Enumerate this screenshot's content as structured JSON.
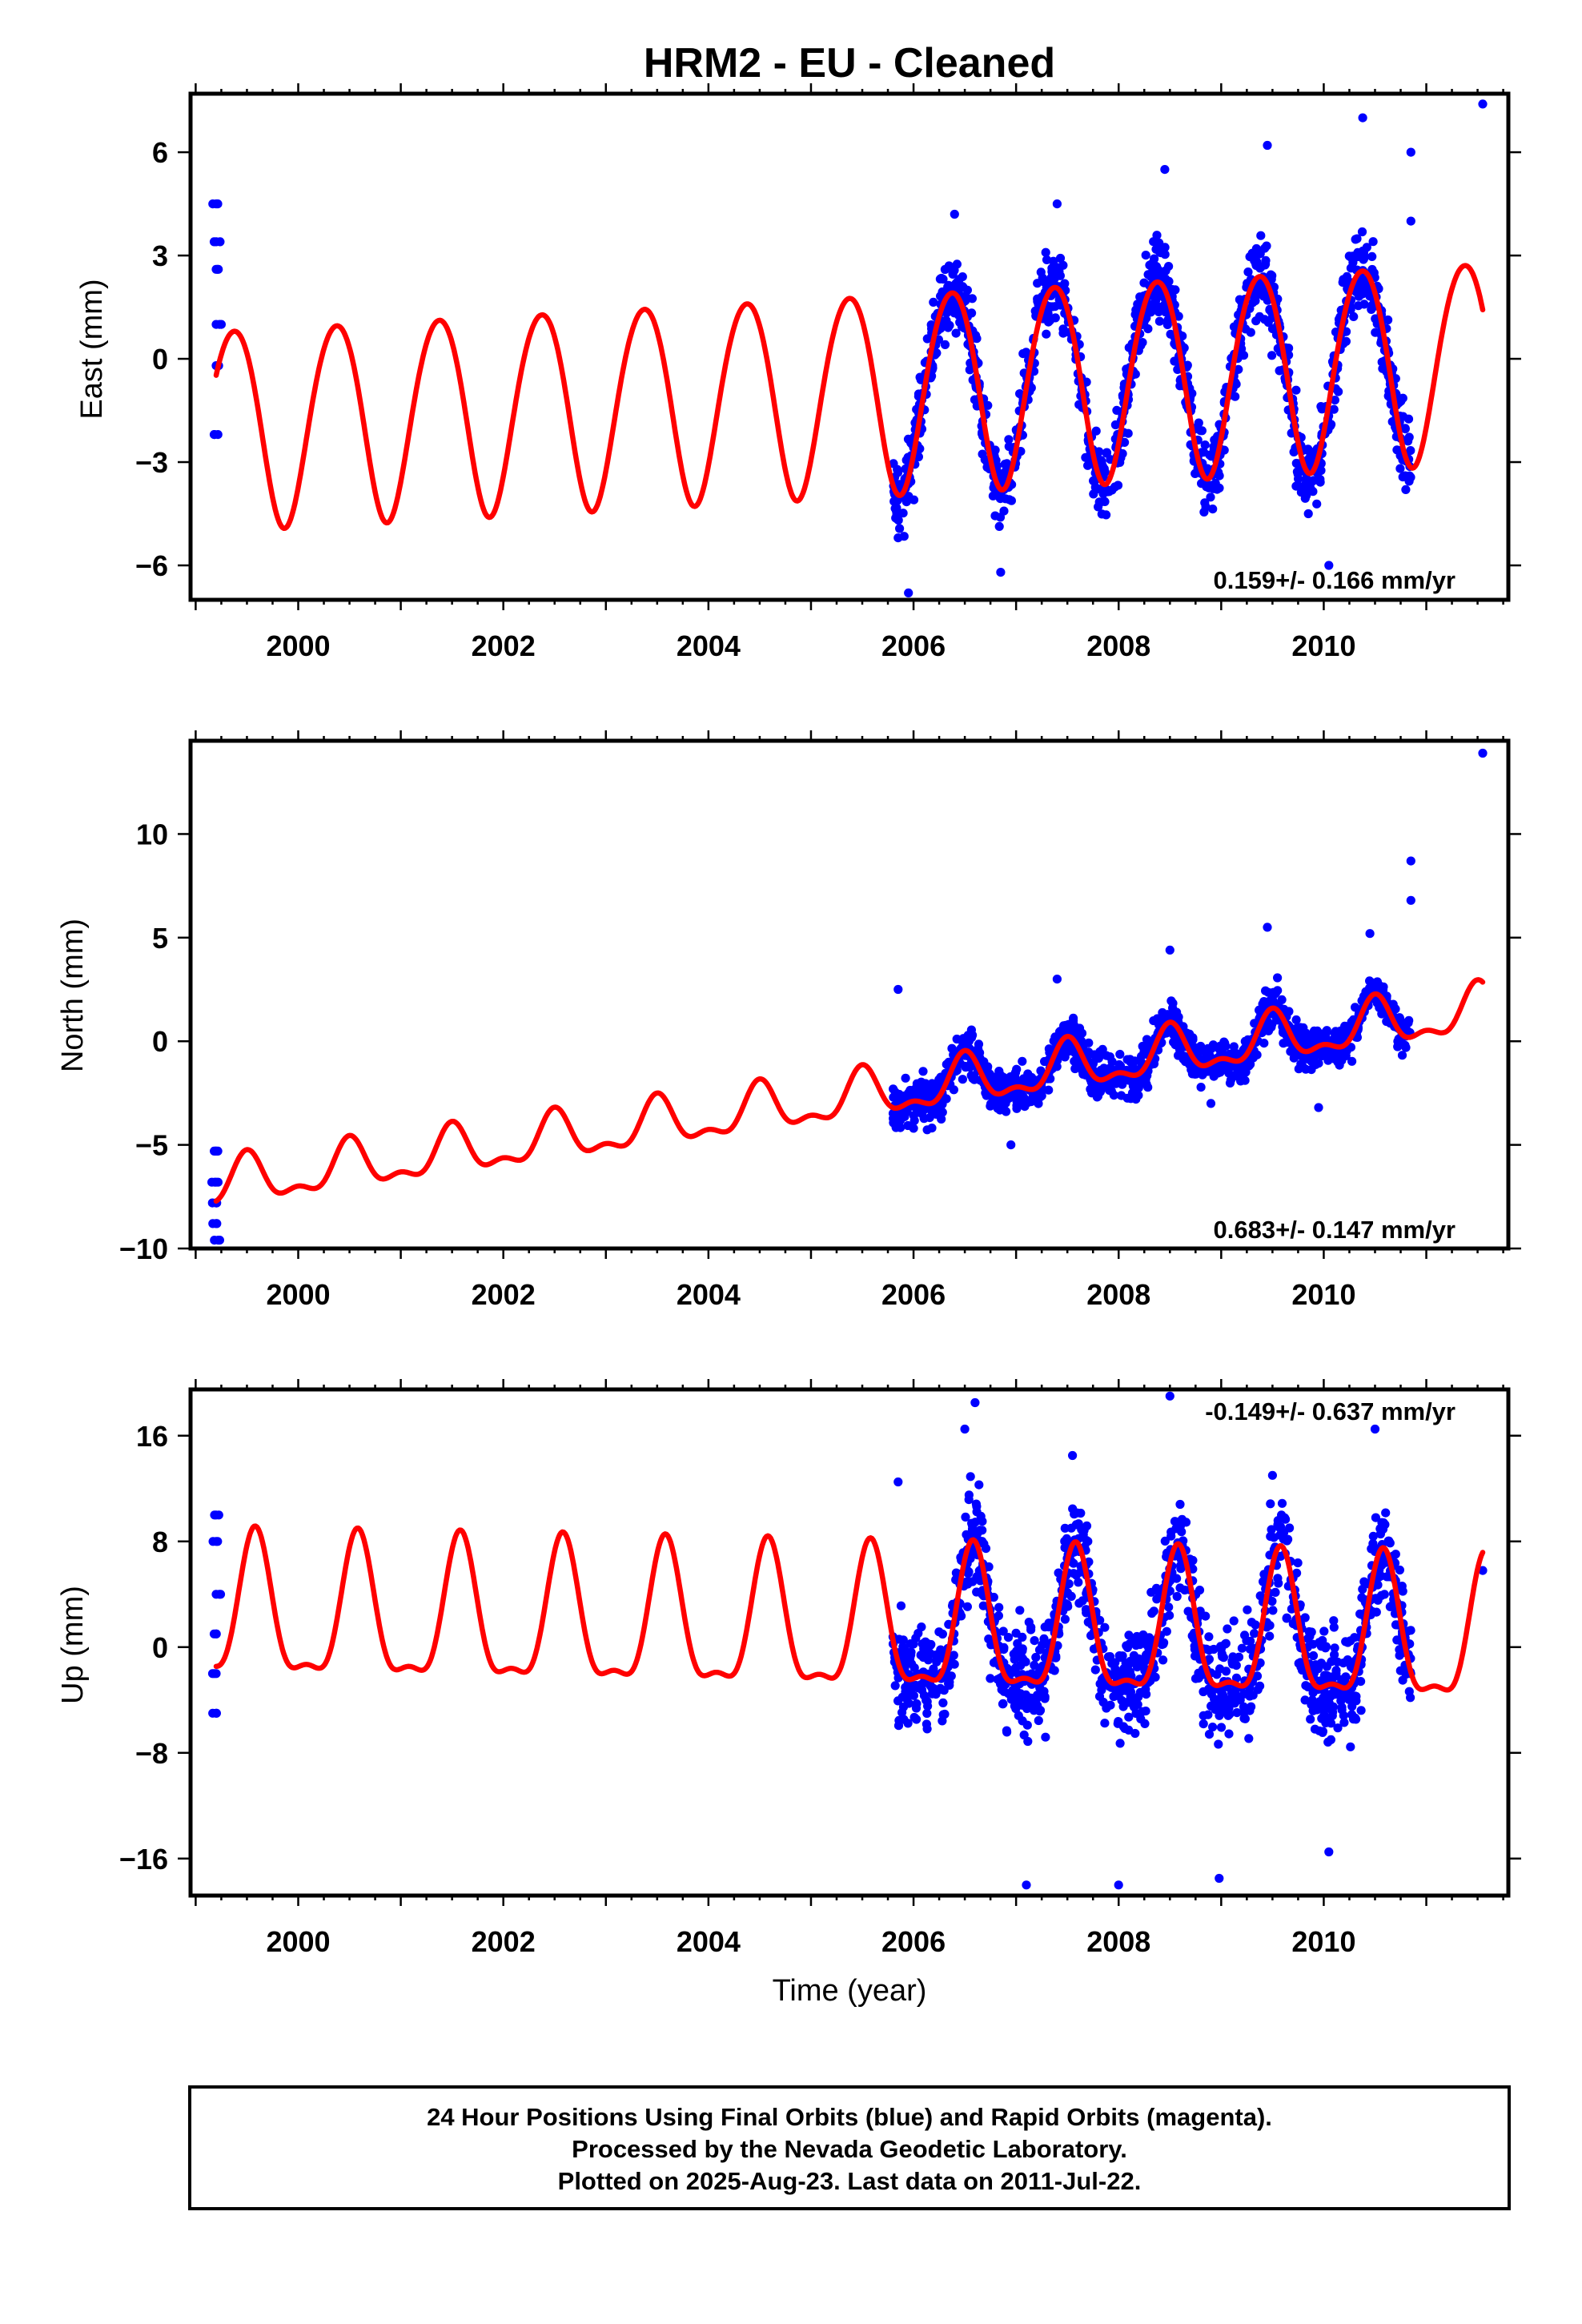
{
  "chart_data": [
    {
      "type": "scatter",
      "title": "HRM2  - EU - Cleaned",
      "ylabel": "East (mm)",
      "xlabel": "",
      "xlim": [
        1998.95,
        2011.8
      ],
      "ylim": [
        -7.0,
        7.7
      ],
      "x_ticks": [
        "2000",
        "2002",
        "2004",
        "2006",
        "2008",
        "2010"
      ],
      "y_ticks": [
        "6",
        "3",
        "0",
        "−3",
        "−6"
      ],
      "y_tick_values": [
        6,
        3,
        0,
        -3,
        -6
      ],
      "rate_label": "0.159+/- 0.166 mm/yr",
      "grid": false,
      "series": [
        {
          "kind": "points",
          "color": "#0000ff",
          "segments": [
            {
              "x_start": 1999.15,
              "x_end": 1999.25,
              "sample_points": [
                [
                  1999.2,
                  4.5
                ],
                [
                  1999.2,
                  3.4
                ],
                [
                  1999.2,
                  2.6
                ],
                [
                  1999.2,
                  1.0
                ],
                [
                  1999.2,
                  -0.2
                ],
                [
                  1999.18,
                  -2.2
                ]
              ]
            },
            {
              "x_start": 2005.8,
              "x_end": 2010.85,
              "sample_points": [
                [
                  2005.85,
                  -5.2
                ],
                [
                  2005.95,
                  -6.8
                ],
                [
                  2006.4,
                  4.2
                ],
                [
                  2006.85,
                  -6.2
                ],
                [
                  2007.4,
                  4.5
                ],
                [
                  2007.8,
                  -4.3
                ],
                [
                  2008.45,
                  5.5
                ],
                [
                  2008.85,
                  -4.3
                ],
                [
                  2009.45,
                  6.2
                ],
                [
                  2009.85,
                  -4.5
                ],
                [
                  2010.05,
                  -6.0
                ],
                [
                  2010.38,
                  7.0
                ],
                [
                  2010.8,
                  -3.8
                ],
                [
                  2010.85,
                  6.0
                ],
                [
                  2010.85,
                  4.0
                ],
                [
                  2011.55,
                  7.4
                ]
              ]
            }
          ]
        },
        {
          "kind": "model",
          "color": "#ff0000",
          "x_range": [
            1999.2,
            2011.55
          ],
          "offset": -0.95,
          "rate": 0.159,
          "ref_year": 2005.4,
          "annual_amp": 2.9,
          "annual_phase_year": 0.37,
          "semiannual_amp": 0.2,
          "semiannual_phase_year": 0.1
        }
      ]
    },
    {
      "type": "scatter",
      "title": "",
      "ylabel": "North (mm)",
      "xlabel": "",
      "xlim": [
        1998.95,
        2011.8
      ],
      "ylim": [
        -10.0,
        14.5
      ],
      "x_ticks": [
        "2000",
        "2002",
        "2004",
        "2006",
        "2008",
        "2010"
      ],
      "y_ticks": [
        "10",
        "5",
        "0",
        "−5",
        "−10"
      ],
      "y_tick_values": [
        10,
        5,
        0,
        -5,
        -10
      ],
      "rate_label": "0.683+/- 0.147 mm/yr",
      "grid": false,
      "series": [
        {
          "kind": "points",
          "color": "#0000ff",
          "segments": [
            {
              "x_start": 1999.15,
              "x_end": 1999.25,
              "sample_points": [
                [
                  1999.2,
                  -5.3
                ],
                [
                  1999.2,
                  -6.8
                ],
                [
                  1999.2,
                  -7.8
                ],
                [
                  1999.2,
                  -8.8
                ],
                [
                  1999.22,
                  -9.6
                ]
              ]
            },
            {
              "x_start": 2005.8,
              "x_end": 2010.85,
              "sample_points": [
                [
                  2005.85,
                  2.5
                ],
                [
                  2006.0,
                  -4.2
                ],
                [
                  2006.95,
                  -5.0
                ],
                [
                  2007.4,
                  3.0
                ],
                [
                  2008.5,
                  4.4
                ],
                [
                  2008.9,
                  -3.0
                ],
                [
                  2009.45,
                  5.5
                ],
                [
                  2009.95,
                  -3.2
                ],
                [
                  2010.45,
                  5.2
                ],
                [
                  2010.85,
                  8.7
                ],
                [
                  2010.85,
                  6.8
                ],
                [
                  2011.55,
                  13.9
                ]
              ]
            }
          ]
        },
        {
          "kind": "model",
          "color": "#ff0000",
          "x_range": [
            1999.2,
            2011.55
          ],
          "offset": -2.75,
          "rate": 0.683,
          "ref_year": 2005.4,
          "annual_amp": 1.05,
          "annual_phase_year": 0.5,
          "semiannual_amp": 0.5,
          "semiannual_phase_year": 0.0
        }
      ]
    },
    {
      "type": "scatter",
      "title": "",
      "ylabel": "Up (mm)",
      "xlabel": "Time (year)",
      "xlim": [
        1998.95,
        2011.8
      ],
      "ylim": [
        -18.8,
        19.5
      ],
      "x_ticks": [
        "2000",
        "2002",
        "2004",
        "2006",
        "2008",
        "2010"
      ],
      "y_ticks": [
        "16",
        "8",
        "0",
        "−8",
        "−16"
      ],
      "y_tick_values": [
        16,
        8,
        0,
        -8,
        -16
      ],
      "rate_label": "-0.149+/- 0.637 mm/yr",
      "grid": false,
      "series": [
        {
          "kind": "points",
          "color": "#0000ff",
          "segments": [
            {
              "x_start": 1999.15,
              "x_end": 1999.25,
              "sample_points": [
                [
                  1999.2,
                  10.0
                ],
                [
                  1999.2,
                  8.0
                ],
                [
                  1999.2,
                  4.0
                ],
                [
                  1999.2,
                  1.0
                ],
                [
                  1999.2,
                  -2.0
                ],
                [
                  1999.2,
                  -5.0
                ]
              ]
            },
            {
              "x_start": 2005.8,
              "x_end": 2010.85,
              "sample_points": [
                [
                  2005.85,
                  12.5
                ],
                [
                  2006.5,
                  16.5
                ],
                [
                  2006.6,
                  18.5
                ],
                [
                  2007.1,
                  -18.0
                ],
                [
                  2007.55,
                  14.5
                ],
                [
                  2008.0,
                  -18.0
                ],
                [
                  2008.5,
                  19.0
                ],
                [
                  2008.98,
                  -17.5
                ],
                [
                  2009.5,
                  13.0
                ],
                [
                  2010.05,
                  -15.5
                ],
                [
                  2010.5,
                  16.5
                ],
                [
                  2011.55,
                  5.8
                ]
              ]
            }
          ]
        },
        {
          "kind": "model",
          "color": "#ff0000",
          "x_range": [
            1999.2,
            2011.55
          ],
          "offset": 1.3,
          "rate": -0.149,
          "ref_year": 2005.4,
          "annual_amp": 5.2,
          "annual_phase_year": 0.58,
          "semiannual_amp": 1.8,
          "semiannual_phase_year": 0.08
        }
      ]
    }
  ],
  "footer": {
    "line1": "24 Hour Positions Using Final Orbits (blue) and Rapid Orbits (magenta).",
    "line2": "Processed by the Nevada Geodetic Laboratory.",
    "line3": "Plotted on 2025-Aug-23. Last data on 2011-Jul-22."
  }
}
